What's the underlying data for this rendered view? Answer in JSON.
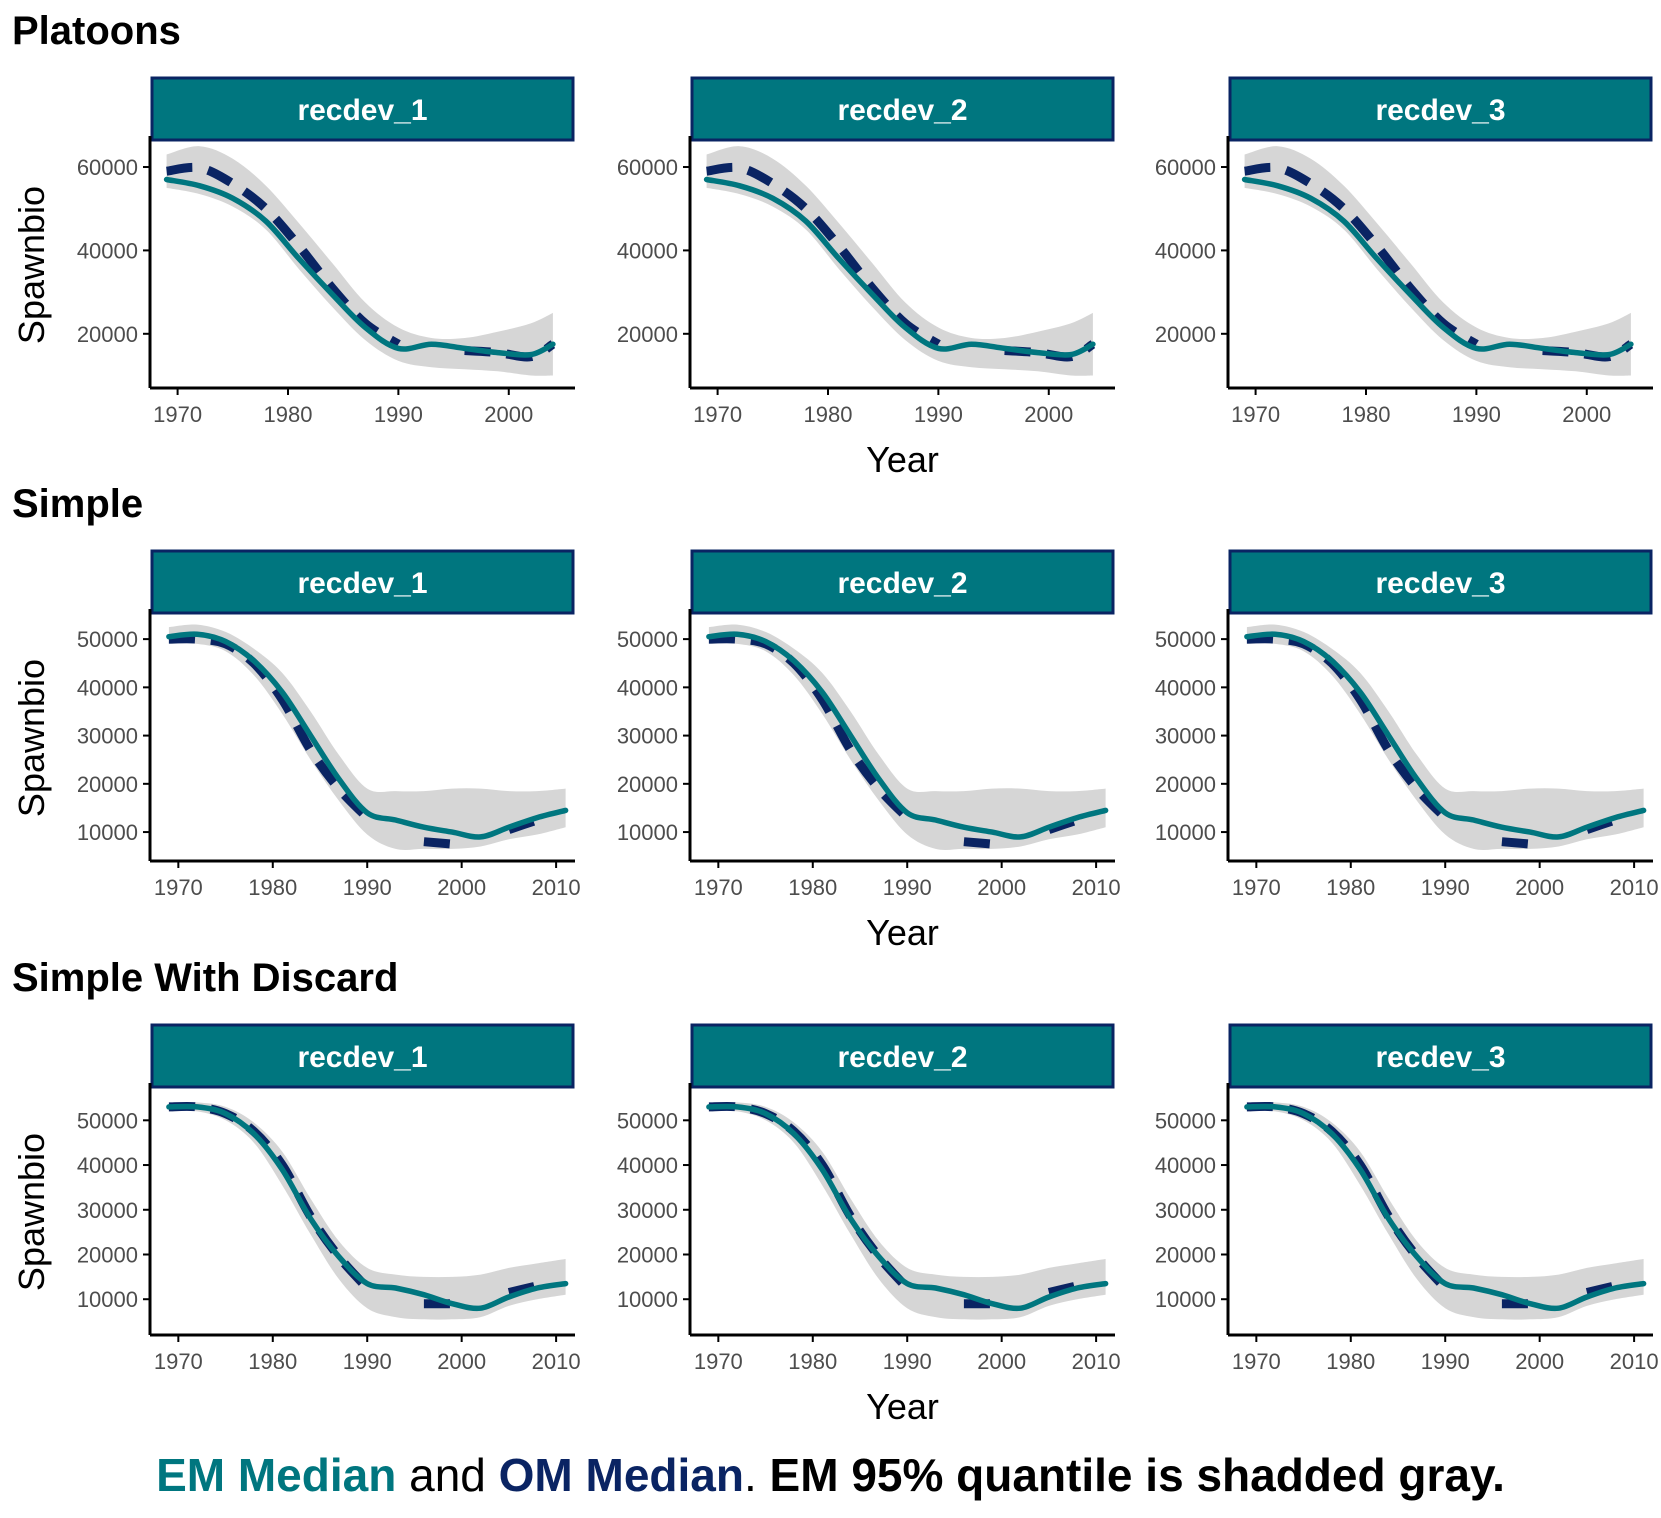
{
  "caption": {
    "em_label": "EM Median",
    "and_text": "and",
    "om_label": "OM Median",
    "period": ".",
    "suffix": "EM 95% quantile is shadded gray."
  },
  "colors": {
    "em_median": "#00767F",
    "om_median": "#0A2463",
    "quantile_band": "#D6D6D6",
    "strip_fill": "#00767F",
    "strip_border": "#0A2463",
    "strip_text": "#FFFFFF",
    "axis": "#000000",
    "tick_text": "#4D4D4D"
  },
  "chart_data": [
    {
      "type": "line",
      "title": "Platoons",
      "ylabel": "Spawnbio",
      "xlabel": "Year",
      "facets": [
        "recdev_1",
        "recdev_2",
        "recdev_3"
      ],
      "xlim": [
        1967.5,
        2006
      ],
      "ylim": [
        7000,
        66000
      ],
      "xticks": [
        1970,
        1980,
        1990,
        2000
      ],
      "yticks": [
        20000,
        40000,
        60000
      ],
      "grid": false,
      "x": [
        1969,
        1972,
        1975,
        1978,
        1981,
        1984,
        1987,
        1990,
        1993,
        1996,
        1999,
        2002,
        2004
      ],
      "series": [
        {
          "name": "EM Median",
          "values": [
            57000,
            55500,
            52500,
            47000,
            38000,
            29500,
            21500,
            16500,
            17500,
            16500,
            15500,
            15000,
            17500
          ]
        },
        {
          "name": "OM Median",
          "values": [
            59000,
            59800,
            56000,
            50000,
            41000,
            31000,
            22500,
            17500,
            null,
            16000,
            15500,
            14500,
            17500
          ]
        }
      ],
      "band": {
        "lower": [
          55000,
          53500,
          50500,
          45000,
          35500,
          26500,
          18500,
          13500,
          12000,
          11500,
          11000,
          10000,
          10000
        ],
        "upper": [
          63000,
          65000,
          62000,
          55500,
          46500,
          37000,
          27500,
          21500,
          19000,
          19000,
          20500,
          22500,
          25000
        ]
      }
    },
    {
      "type": "line",
      "title": "Simple",
      "ylabel": "Spawnbio",
      "xlabel": "Year",
      "facets": [
        "recdev_1",
        "recdev_2",
        "recdev_3"
      ],
      "xlim": [
        1967,
        2012
      ],
      "ylim": [
        4000,
        55000
      ],
      "xticks": [
        1970,
        1980,
        1990,
        2000,
        2010
      ],
      "yticks": [
        10000,
        20000,
        30000,
        40000,
        50000
      ],
      "grid": false,
      "x": [
        1969,
        1972,
        1975,
        1978,
        1981,
        1984,
        1987,
        1990,
        1993,
        1996,
        1999,
        2002,
        2005,
        2008,
        2011
      ],
      "series": [
        {
          "name": "EM Median",
          "values": [
            50500,
            51000,
            49500,
            45500,
            39000,
            30000,
            21000,
            14000,
            12500,
            11000,
            10000,
            9000,
            11000,
            13000,
            14500
          ]
        },
        {
          "name": "OM Median",
          "values": [
            50000,
            50000,
            49000,
            45000,
            37500,
            27000,
            19000,
            13000,
            null,
            8000,
            7500,
            null,
            10500,
            12500,
            null
          ]
        }
      ],
      "band": {
        "lower": [
          49000,
          49000,
          47500,
          42500,
          34500,
          25000,
          16500,
          9500,
          6500,
          6500,
          6500,
          7000,
          8500,
          9500,
          11000
        ],
        "upper": [
          52500,
          53000,
          51500,
          48000,
          43000,
          35000,
          26000,
          19000,
          18500,
          18500,
          19000,
          19000,
          18500,
          18500,
          19000
        ]
      }
    },
    {
      "type": "line",
      "title": "Simple With Discard",
      "ylabel": "Spawnbio",
      "xlabel": "Year",
      "facets": [
        "recdev_1",
        "recdev_2",
        "recdev_3"
      ],
      "xlim": [
        1967,
        2012
      ],
      "ylim": [
        2000,
        57000
      ],
      "xticks": [
        1970,
        1980,
        1990,
        2000,
        2010
      ],
      "yticks": [
        10000,
        20000,
        30000,
        40000,
        50000
      ],
      "grid": false,
      "x": [
        1969,
        1972,
        1975,
        1978,
        1981,
        1984,
        1987,
        1990,
        1993,
        1996,
        1999,
        2002,
        2005,
        2008,
        2011
      ],
      "series": [
        {
          "name": "EM Median",
          "values": [
            53000,
            53000,
            51500,
            47000,
            39000,
            28000,
            19500,
            13500,
            12500,
            11000,
            9000,
            8000,
            10500,
            12500,
            13500
          ]
        },
        {
          "name": "OM Median",
          "values": [
            53000,
            53000,
            51500,
            47500,
            40000,
            28500,
            19500,
            12500,
            null,
            9000,
            9000,
            null,
            11500,
            13000,
            null
          ]
        }
      ],
      "band": {
        "lower": [
          52000,
          52000,
          50000,
          45000,
          35500,
          24500,
          14500,
          8000,
          6000,
          5500,
          5500,
          6000,
          8500,
          10000,
          11000
        ],
        "upper": [
          54000,
          54000,
          53000,
          49500,
          43000,
          32500,
          23000,
          17000,
          15500,
          15000,
          15000,
          15500,
          17000,
          18000,
          19000
        ]
      }
    }
  ]
}
